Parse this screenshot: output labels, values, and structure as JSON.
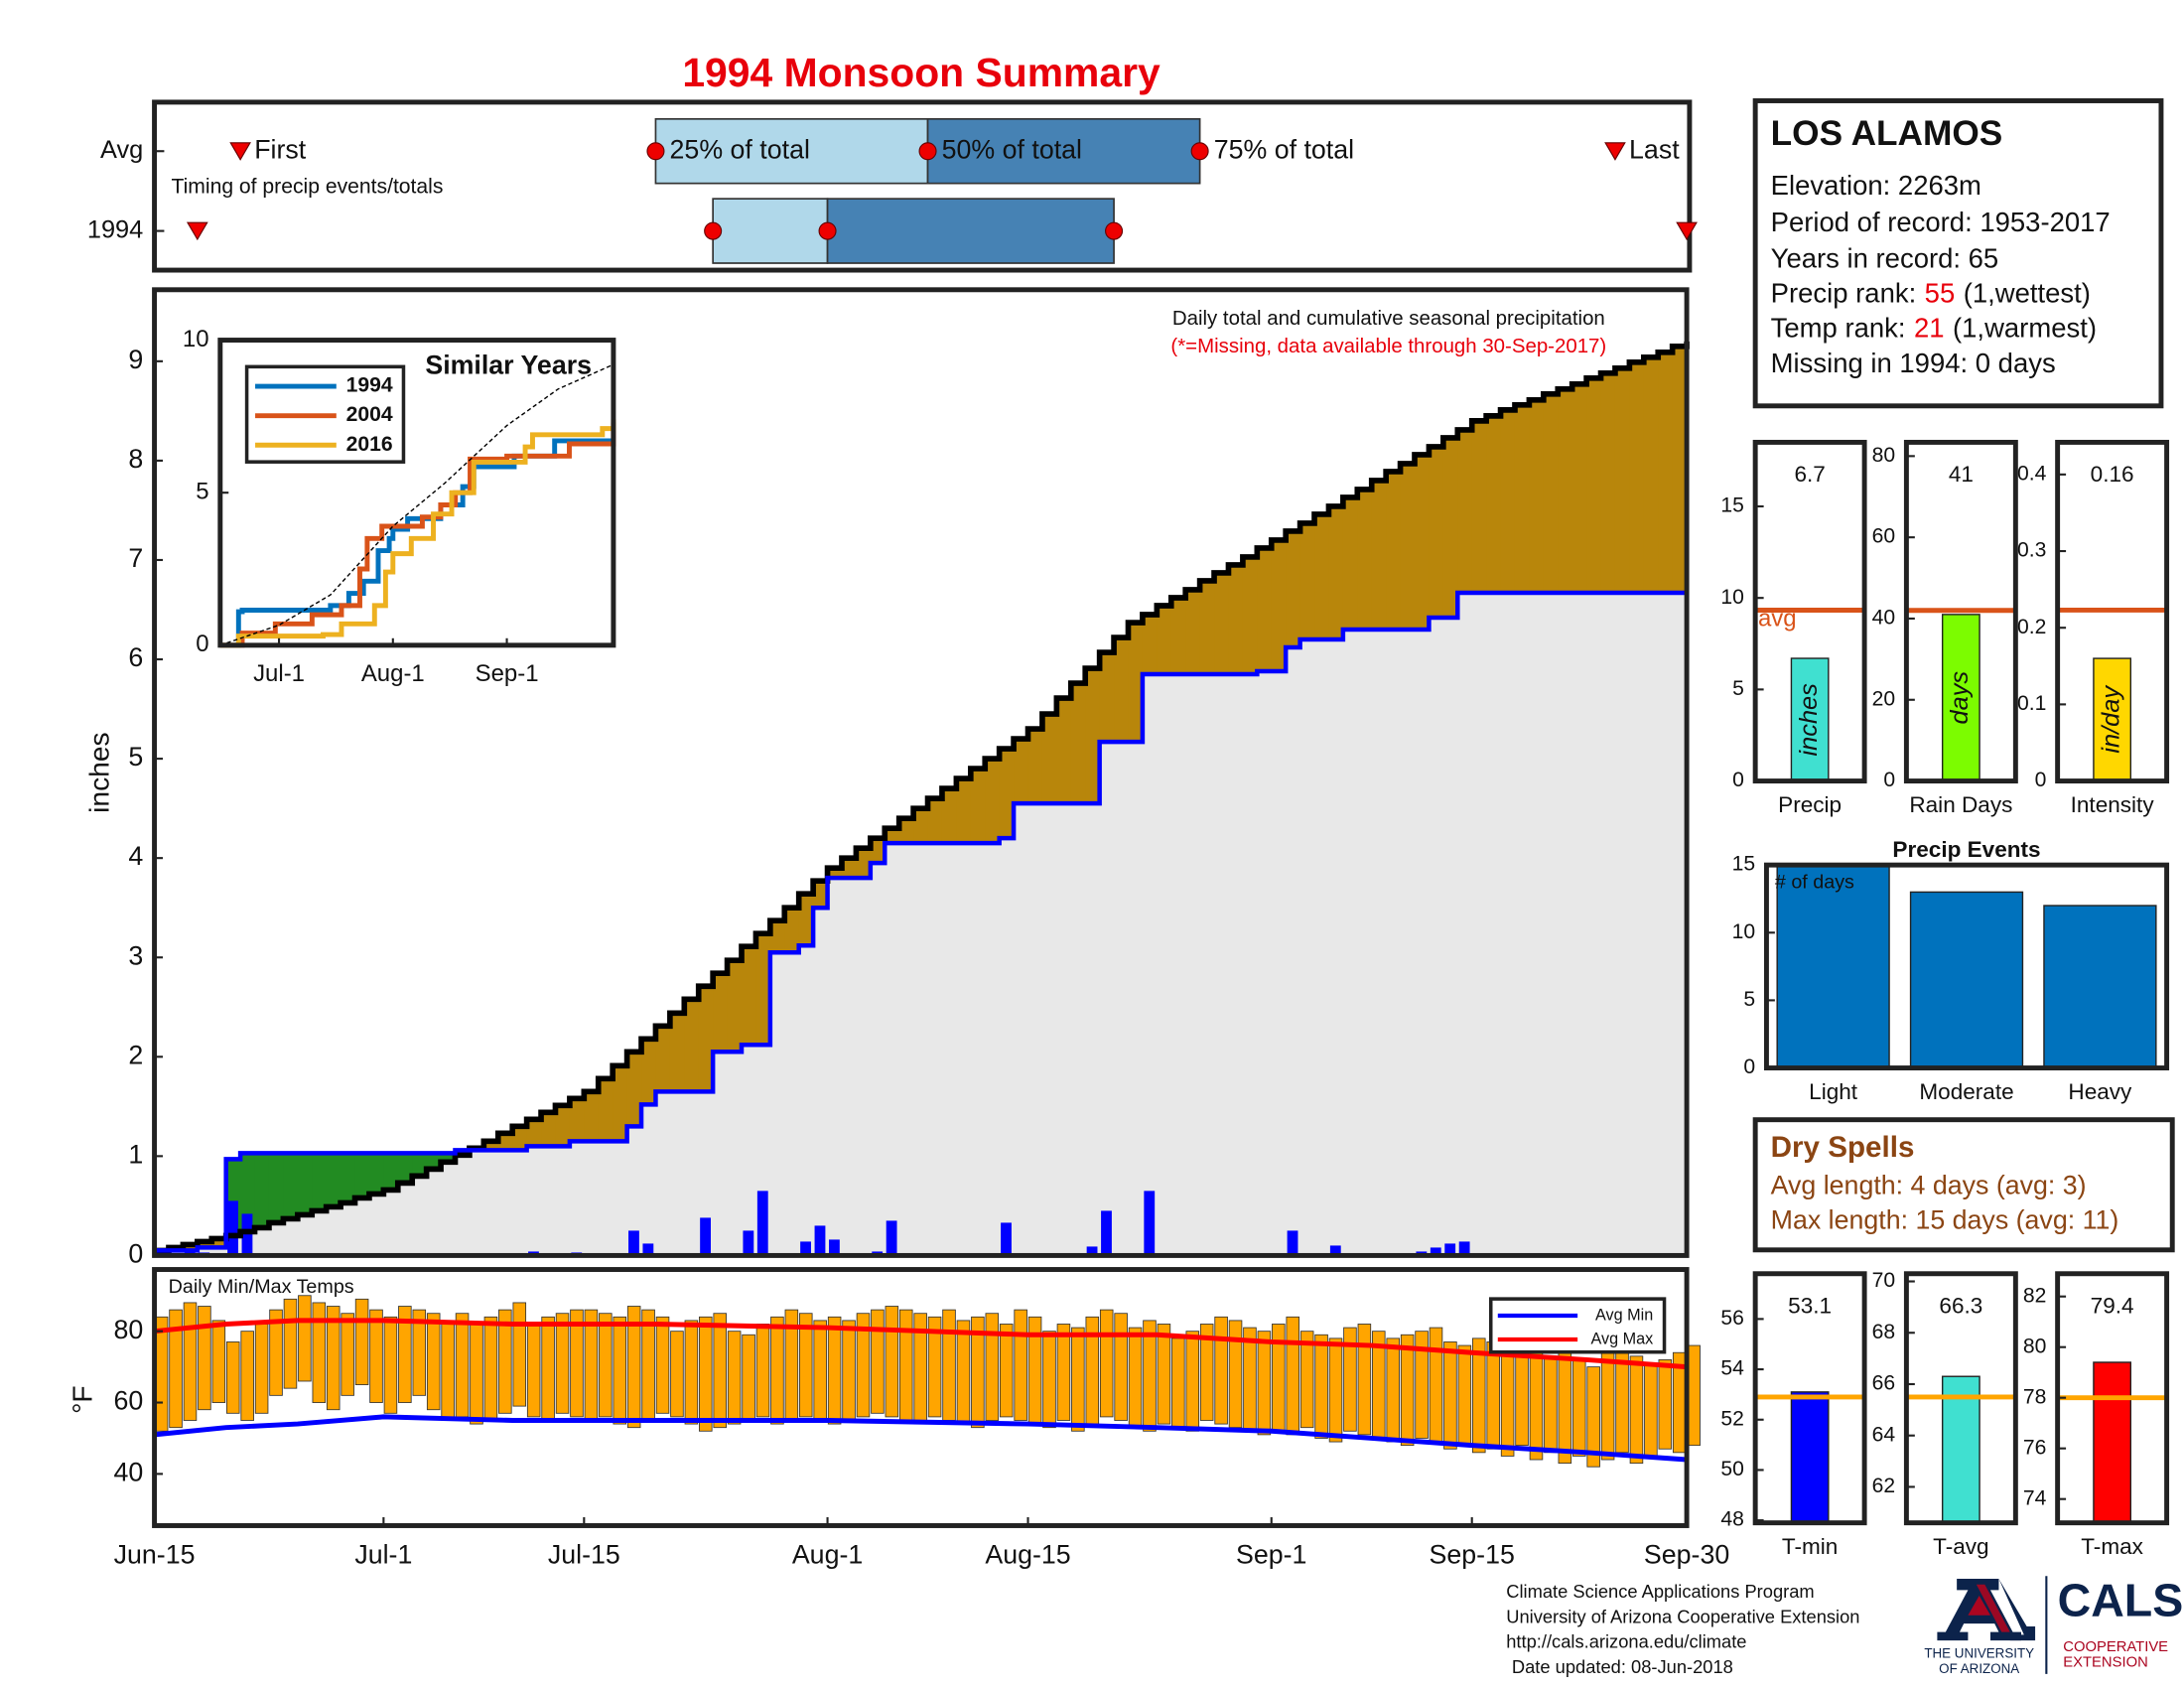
{
  "title": "1994 Monsoon Summary",
  "info": {
    "station": "LOS ALAMOS",
    "lines": [
      "Elevation: 2263m",
      "Period of record: 1953-2017",
      "Years in record: 65"
    ],
    "precip_rank": {
      "label": "Precip rank:",
      "value": "55",
      "note": "(1,wettest)"
    },
    "temp_rank": {
      "label": "Temp rank:",
      "value": "21",
      "note": "(1,warmest)"
    },
    "missing": "Missing in 1994: 0 days"
  },
  "dry_spells": {
    "title": "Dry Spells",
    "lines": [
      "Avg length: 4 days (avg: 3)",
      "Max length: 15 days (avg: 11)"
    ]
  },
  "footer": [
    "Climate Science Applications Program",
    "University of Arizona Cooperative Extension",
    "http://cals.arizona.edu/climate",
    "Date updated: 08-Jun-2018"
  ],
  "logo": {
    "university": [
      "THE UNIVERSITY",
      "OF ARIZONA"
    ],
    "cals": "CALS",
    "extension": [
      "COOPERATIVE",
      "EXTENSION"
    ]
  },
  "chart_data": [
    {
      "type": "stairs",
      "ylabel": "inches",
      "note": "Daily total and cumulative seasonal precipitation",
      "note2": "(*=Missing, data available through 30-Sep-2017)",
      "xlim": [
        0,
        107
      ],
      "ylim": [
        0,
        9.72
      ],
      "yticks": [
        0,
        1,
        2,
        3,
        4,
        5,
        6,
        7,
        8,
        9
      ],
      "fill_above": "#228b22",
      "fill_below": "#b8860b",
      "fill_base": "#e8e8e8",
      "series": [
        {
          "color": "#000000",
          "x": [
            0,
            1,
            2,
            3,
            4,
            5,
            6,
            7,
            8,
            9,
            10,
            11,
            12,
            13,
            14,
            15,
            16,
            17,
            18,
            19,
            20,
            21,
            22,
            23,
            24,
            25,
            26,
            27,
            28,
            29,
            30,
            31,
            32,
            33,
            34,
            35,
            36,
            37,
            38,
            39,
            40,
            41,
            42,
            43,
            44,
            45,
            46,
            47,
            48,
            49,
            50,
            51,
            52,
            53,
            54,
            55,
            56,
            57,
            58,
            59,
            60,
            61,
            62,
            63,
            64,
            65,
            66,
            67,
            68,
            69,
            70,
            71,
            72,
            73,
            74,
            75,
            76,
            77,
            78,
            79,
            80,
            81,
            82,
            83,
            84,
            85,
            86,
            87,
            88,
            89,
            90,
            91,
            92,
            93,
            94,
            95,
            96,
            97,
            98,
            99,
            100,
            101,
            102,
            103,
            104,
            105,
            106,
            107
          ],
          "values": [
            0.05,
            0.08,
            0.11,
            0.14,
            0.17,
            0.2,
            0.24,
            0.28,
            0.33,
            0.37,
            0.41,
            0.45,
            0.49,
            0.53,
            0.58,
            0.62,
            0.66,
            0.73,
            0.8,
            0.87,
            0.94,
            1.01,
            1.08,
            1.15,
            1.23,
            1.3,
            1.37,
            1.44,
            1.51,
            1.58,
            1.65,
            1.78,
            1.91,
            2.05,
            2.18,
            2.31,
            2.44,
            2.58,
            2.71,
            2.84,
            2.97,
            3.11,
            3.24,
            3.37,
            3.5,
            3.64,
            3.77,
            3.9,
            4,
            4.1,
            4.2,
            4.3,
            4.4,
            4.5,
            4.6,
            4.7,
            4.8,
            4.9,
            5,
            5.1,
            5.2,
            5.3,
            5.45,
            5.61,
            5.76,
            5.91,
            6.07,
            6.22,
            6.37,
            6.45,
            6.54,
            6.62,
            6.7,
            6.79,
            6.87,
            6.95,
            7.03,
            7.12,
            7.2,
            7.29,
            7.37,
            7.46,
            7.54,
            7.63,
            7.71,
            7.8,
            7.89,
            7.97,
            8.06,
            8.14,
            8.23,
            8.31,
            8.4,
            8.45,
            8.51,
            8.56,
            8.61,
            8.67,
            8.72,
            8.77,
            8.83,
            8.88,
            8.93,
            8.99,
            9.04,
            9.09,
            9.15,
            9.2
          ]
        },
        {
          "color": "#0000ff",
          "x": [
            0,
            3,
            5,
            6,
            21,
            26,
            29,
            33,
            34,
            35,
            39,
            41,
            43,
            45,
            46,
            47,
            50,
            51,
            59,
            60,
            66,
            69,
            77,
            79,
            80,
            83,
            89,
            91,
            107
          ],
          "values": [
            0.05,
            0.08,
            0.97,
            1.03,
            1.06,
            1.1,
            1.15,
            1.3,
            1.52,
            1.65,
            2.05,
            2.12,
            3.05,
            3.12,
            3.5,
            3.8,
            3.95,
            4.15,
            4.2,
            4.55,
            5.17,
            5.85,
            5.88,
            6.12,
            6.2,
            6.3,
            6.42,
            6.67,
            6.67
          ]
        }
      ],
      "bars": {
        "color": "#0000ff",
        "x": [
          0,
          1,
          2,
          3,
          4,
          5,
          6,
          14,
          24,
          26,
          29,
          33,
          34,
          38,
          41,
          42,
          45,
          46,
          47,
          50,
          51,
          59,
          65,
          66,
          69,
          79,
          82,
          88,
          89,
          90,
          91
        ],
        "values": [
          0.02,
          0.02,
          0.03,
          0.03,
          0.01,
          0.55,
          0.42,
          0.02,
          0.02,
          0.04,
          0.03,
          0.25,
          0.12,
          0.38,
          0.25,
          0.65,
          0.14,
          0.3,
          0.16,
          0.04,
          0.35,
          0.33,
          0.09,
          0.45,
          0.65,
          0.25,
          0.1,
          0.04,
          0.08,
          0.12,
          0.14
        ]
      }
    },
    {
      "type": "line",
      "title": "Similar Years",
      "xlim": [
        0,
        107
      ],
      "ylim": [
        0,
        10
      ],
      "yticks": [
        0,
        5,
        10
      ],
      "xticks": [
        {
          "value": 16,
          "label": "Jul-1"
        },
        {
          "value": 47,
          "label": "Aug-1"
        },
        {
          "value": 78,
          "label": "Sep-1"
        }
      ],
      "series": [
        {
          "name": "1994",
          "color": "#0072bd",
          "step": true,
          "x": [
            0,
            5,
            6,
            30,
            35,
            39,
            43,
            46,
            47,
            51,
            60,
            66,
            69,
            80,
            91,
            107
          ],
          "values": [
            0,
            1.1,
            1.15,
            1.3,
            1.7,
            2.1,
            3.1,
            3.5,
            3.8,
            4.15,
            4.6,
            5.2,
            5.85,
            6.2,
            6.7,
            6.7
          ]
        },
        {
          "name": "2004",
          "color": "#d95319",
          "step": true,
          "x": [
            0,
            5,
            6,
            15,
            25,
            33,
            38,
            40,
            44,
            50,
            55,
            60,
            64,
            68,
            76,
            78,
            90,
            95,
            105,
            107
          ],
          "values": [
            0,
            0,
            0.4,
            0.7,
            1,
            1.3,
            2.5,
            3.5,
            3.9,
            3.9,
            4.2,
            4.6,
            5,
            6.1,
            6.1,
            6.2,
            6.2,
            6.6,
            6.6,
            7.3
          ]
        },
        {
          "name": "2016",
          "color": "#edb120",
          "step": true,
          "x": [
            0,
            2,
            5,
            28,
            33,
            42,
            45,
            47,
            52,
            58,
            63,
            69,
            83,
            85,
            100,
            104,
            107
          ],
          "values": [
            0,
            0,
            0.3,
            0.35,
            0.7,
            1.3,
            2.4,
            3,
            3.5,
            4.3,
            5,
            6,
            6.5,
            6.9,
            6.9,
            7.1,
            7.4
          ]
        },
        {
          "color": "#000000",
          "dash": true,
          "x": [
            0,
            16,
            30,
            47,
            61,
            78,
            92,
            107
          ],
          "values": [
            0,
            0.66,
            1.65,
            3.9,
            5.3,
            7.2,
            8.4,
            9.2
          ]
        }
      ]
    },
    {
      "type": "range-bar",
      "note": "Daily Min/Max Temps",
      "ylabel": "°F",
      "xlim": [
        0,
        107
      ],
      "ylim": [
        25.5,
        97.3
      ],
      "yticks": [
        40,
        60,
        80
      ],
      "xticks": [
        {
          "value": 0,
          "label": "Jun-15"
        },
        {
          "value": 16,
          "label": "Jul-1"
        },
        {
          "value": 30,
          "label": "Jul-15"
        },
        {
          "value": 47,
          "label": "Aug-1"
        },
        {
          "value": 61,
          "label": "Aug-15"
        },
        {
          "value": 78,
          "label": "Sep-1"
        },
        {
          "value": 92,
          "label": "Sep-15"
        },
        {
          "value": 107,
          "label": "Sep-30"
        }
      ],
      "bar_color": "#ffa500",
      "legend": "upper right",
      "x": [
        0,
        1,
        2,
        3,
        4,
        5,
        6,
        7,
        8,
        9,
        10,
        11,
        12,
        13,
        14,
        15,
        16,
        17,
        18,
        19,
        20,
        21,
        22,
        23,
        24,
        25,
        26,
        27,
        28,
        29,
        30,
        31,
        32,
        33,
        34,
        35,
        36,
        37,
        38,
        39,
        40,
        41,
        42,
        43,
        44,
        45,
        46,
        47,
        48,
        49,
        50,
        51,
        52,
        53,
        54,
        55,
        56,
        57,
        58,
        59,
        60,
        61,
        62,
        63,
        64,
        65,
        66,
        67,
        68,
        69,
        70,
        71,
        72,
        73,
        74,
        75,
        76,
        77,
        78,
        79,
        80,
        81,
        82,
        83,
        84,
        85,
        86,
        87,
        88,
        89,
        90,
        91,
        92,
        93,
        94,
        95,
        96,
        97,
        98,
        99,
        100,
        101,
        102,
        103,
        104,
        105,
        106,
        107
      ],
      "high": [
        84,
        86,
        88,
        87,
        83,
        77,
        80,
        82,
        86,
        89,
        90,
        88,
        87,
        85,
        89,
        86,
        84,
        87,
        86,
        85,
        83,
        85,
        82,
        84,
        86,
        88,
        82,
        84,
        85,
        86,
        86,
        85,
        84,
        87,
        86,
        84,
        80,
        83,
        84,
        85,
        80,
        79,
        82,
        84,
        86,
        85,
        83,
        84,
        83,
        85,
        86,
        87,
        86,
        85,
        84,
        86,
        83,
        84,
        85,
        82,
        86,
        84,
        80,
        82,
        81,
        84,
        86,
        85,
        81,
        83,
        82,
        78,
        80,
        82,
        84,
        83,
        81,
        80,
        82,
        84,
        80,
        79,
        78,
        81,
        82,
        80,
        78,
        79,
        80,
        81,
        77,
        76,
        78,
        77,
        75,
        76,
        74,
        73,
        75,
        72,
        70,
        74,
        75,
        73,
        71,
        72,
        74,
        76
      ],
      "low": [
        52,
        53,
        55,
        58,
        60,
        57,
        55,
        57,
        62,
        64,
        66,
        60,
        58,
        62,
        65,
        60,
        57,
        60,
        62,
        58,
        55,
        56,
        54,
        55,
        57,
        59,
        56,
        55,
        57,
        56,
        55,
        56,
        54,
        53,
        55,
        57,
        56,
        54,
        52,
        53,
        54,
        55,
        56,
        54,
        55,
        56,
        55,
        54,
        55,
        56,
        57,
        56,
        55,
        54,
        56,
        55,
        54,
        53,
        55,
        56,
        55,
        54,
        53,
        55,
        52,
        54,
        56,
        55,
        53,
        52,
        54,
        53,
        52,
        55,
        54,
        53,
        52,
        51,
        52,
        51,
        53,
        50,
        49,
        52,
        51,
        50,
        49,
        48,
        50,
        49,
        47,
        48,
        46,
        47,
        45,
        48,
        44,
        46,
        43,
        45,
        42,
        44,
        46,
        43,
        45,
        47,
        46,
        48
      ],
      "series": [
        {
          "name": "Avg Min",
          "color": "#0000ff",
          "x": [
            0,
            5,
            10,
            16,
            25,
            35,
            47,
            61,
            70,
            78,
            85,
            92,
            100,
            107
          ],
          "values": [
            51,
            53,
            54,
            56,
            55,
            55,
            55,
            54,
            53,
            52,
            50,
            48,
            46,
            44
          ]
        },
        {
          "name": "Avg Max",
          "color": "#ff0000",
          "x": [
            0,
            5,
            10,
            16,
            25,
            35,
            47,
            61,
            70,
            78,
            85,
            92,
            100,
            107
          ],
          "values": [
            80,
            82,
            83,
            83,
            82,
            82,
            81,
            79,
            79,
            77,
            76,
            74,
            72,
            70
          ]
        }
      ]
    },
    {
      "type": "bar",
      "categories": [
        "Precip"
      ],
      "values": [
        6.7
      ],
      "color": "#40e0d0",
      "bar_text": "inches",
      "avg": 9.33,
      "avg_label": "avg",
      "avg_color": "#d95319",
      "ylim": [
        0,
        18.5
      ],
      "yticks": [
        0,
        5,
        10,
        15
      ]
    },
    {
      "type": "bar",
      "categories": [
        "Rain Days"
      ],
      "values": [
        41
      ],
      "color": "#7cfc00",
      "bar_text": "days",
      "avg": 42,
      "avg_color": "#d95319",
      "ylim": [
        0,
        83.4
      ],
      "yticks": [
        0,
        20,
        40,
        60,
        80
      ]
    },
    {
      "type": "bar",
      "categories": [
        "Intensity"
      ],
      "values": [
        0.16
      ],
      "color": "#ffd700",
      "bar_text": "in/day",
      "avg": 0.223,
      "avg_color": "#d95319",
      "ylim": [
        0,
        0.442
      ],
      "yticks": [
        0,
        0.1,
        0.2,
        0.3,
        0.4
      ]
    },
    {
      "type": "bar",
      "title": "Precip Events",
      "note": "# of days",
      "categories": [
        "Light",
        "Moderate",
        "Heavy"
      ],
      "values": [
        15,
        13,
        12
      ],
      "color": "#0072bd",
      "ylim": [
        0,
        15
      ],
      "yticks": [
        0,
        5,
        10,
        15
      ]
    },
    {
      "type": "bar",
      "categories": [
        "T-min"
      ],
      "values": [
        53.1
      ],
      "color": "#0000ff",
      "avg": 52.9,
      "avg_color": "#ffa500",
      "ylim": [
        47.9,
        57.8
      ],
      "yticks": [
        48,
        50,
        52,
        54,
        56
      ]
    },
    {
      "type": "bar",
      "categories": [
        "T-avg"
      ],
      "values": [
        66.3
      ],
      "color": "#40e0d0",
      "avg": 65.5,
      "avg_color": "#ffa500",
      "ylim": [
        60.6,
        70.3
      ],
      "yticks": [
        62,
        64,
        66,
        68,
        70
      ]
    },
    {
      "type": "bar",
      "categories": [
        "T-max"
      ],
      "values": [
        79.4
      ],
      "color": "#ff0000",
      "avg": 78,
      "avg_color": "#ffa500",
      "ylim": [
        73.06,
        82.9
      ],
      "yticks": [
        74,
        76,
        78,
        80,
        82
      ]
    },
    {
      "type": "timing",
      "note": "Timing of precip events/totals",
      "rows": [
        "Avg",
        "1994"
      ],
      "labels": [
        "First",
        "25% of total",
        "50% of total",
        "75% of total",
        "Last"
      ],
      "values": [
        [
          6,
          35,
          54,
          73,
          102
        ],
        [
          3,
          39,
          47,
          67,
          107
        ]
      ],
      "xlim": [
        0,
        107
      ],
      "colors": [
        "#b0d8ea",
        "#4682b4"
      ],
      "marker_color": "#ee0000"
    }
  ]
}
